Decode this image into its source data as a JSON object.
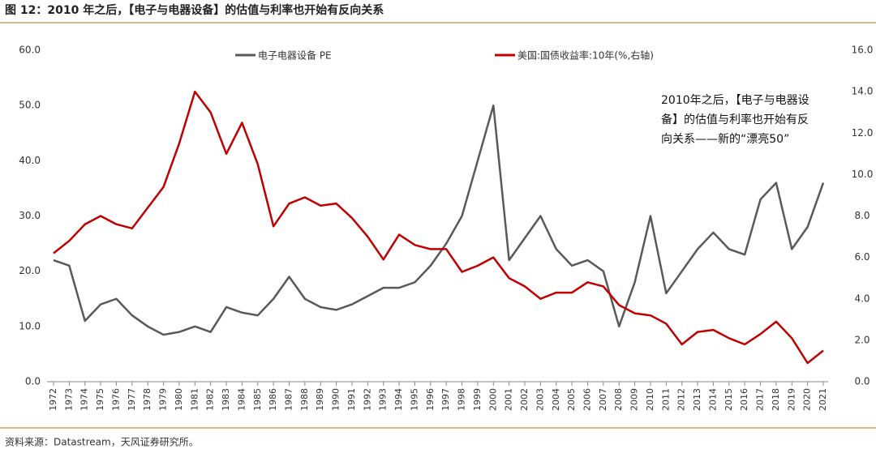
{
  "chart_data": {
    "type": "line",
    "title": "图 12：2010 年之后，【电子与电器设备】的估值与利率也开始有反向关系",
    "annotation": [
      "2010年之后，【电子与电器设",
      "备】的估值与利率也开始有反",
      "向关系——新的“漂亮50”"
    ],
    "source": "资料来源：Datastream，天风证券研究所。",
    "x": [
      1972,
      1973,
      1974,
      1975,
      1976,
      1977,
      1978,
      1979,
      1980,
      1981,
      1982,
      1983,
      1984,
      1985,
      1986,
      1987,
      1988,
      1989,
      1990,
      1991,
      1992,
      1993,
      1994,
      1995,
      1996,
      1997,
      1998,
      1999,
      2000,
      2001,
      2002,
      2003,
      2004,
      2005,
      2006,
      2007,
      2008,
      2009,
      2010,
      2011,
      2012,
      2013,
      2014,
      2015,
      2016,
      2017,
      2018,
      2019,
      2020,
      2021
    ],
    "xlim": [
      1972,
      2021
    ],
    "xticks": [
      1972,
      1973,
      1974,
      1975,
      1976,
      1977,
      1978,
      1979,
      1980,
      1981,
      1982,
      1983,
      1984,
      1985,
      1986,
      1987,
      1988,
      1989,
      1990,
      1991,
      1992,
      1993,
      1994,
      1995,
      1996,
      1997,
      1998,
      1999,
      2000,
      2001,
      2002,
      2003,
      2004,
      2005,
      2006,
      2007,
      2008,
      2009,
      2010,
      2011,
      2012,
      2013,
      2014,
      2015,
      2016,
      2017,
      2018,
      2019,
      2020,
      2021
    ],
    "ylim": [
      0,
      60
    ],
    "yticks": [
      {
        "value": 0,
        "label": "0.0"
      },
      {
        "value": 10,
        "label": "10.0"
      },
      {
        "value": 20,
        "label": "20.0"
      },
      {
        "value": 30,
        "label": "30.0"
      },
      {
        "value": 40,
        "label": "40.0"
      },
      {
        "value": 50,
        "label": "50.0"
      },
      {
        "value": 60,
        "label": "60.0"
      }
    ],
    "y2lim": [
      0,
      16
    ],
    "y2ticks": [
      {
        "value": 0,
        "label": "0.0"
      },
      {
        "value": 2,
        "label": "2.0"
      },
      {
        "value": 4,
        "label": "4.0"
      },
      {
        "value": 6,
        "label": "6.0"
      },
      {
        "value": 8,
        "label": "8.0"
      },
      {
        "value": 10,
        "label": "10.0"
      },
      {
        "value": 12,
        "label": "12.0"
      },
      {
        "value": 14,
        "label": "14.0"
      },
      {
        "value": 16,
        "label": "16.0"
      }
    ],
    "series": [
      {
        "name": "电子电器设备 PE",
        "color": "#595959",
        "values": [
          22,
          21,
          11,
          14,
          15,
          12,
          10,
          8.5,
          9,
          10,
          9,
          13.5,
          12.5,
          12,
          15,
          19,
          15,
          13.5,
          13,
          14,
          15.5,
          17,
          17,
          18,
          21,
          25,
          30,
          40,
          50,
          22,
          26,
          30,
          24,
          21,
          22,
          20,
          10,
          18,
          30,
          16,
          20,
          24,
          27,
          24,
          23,
          33,
          36,
          24,
          28,
          36
        ]
      },
      {
        "name": "美国:国债收益率:10年(%,右轴)",
        "color": "#c00000",
        "axis": "y2",
        "values": [
          6.2,
          6.8,
          7.6,
          8.0,
          7.6,
          7.4,
          8.4,
          9.4,
          11.5,
          14,
          13,
          11,
          12.5,
          10.5,
          7.5,
          8.6,
          8.9,
          8.5,
          8.6,
          7.9,
          7.0,
          5.9,
          7.1,
          6.6,
          6.4,
          6.4,
          5.3,
          5.6,
          6.0,
          5.0,
          4.6,
          4.0,
          4.3,
          4.3,
          4.8,
          4.6,
          3.7,
          3.3,
          3.2,
          2.8,
          1.8,
          2.4,
          2.5,
          2.1,
          1.8,
          2.3,
          2.9,
          2.1,
          0.9,
          1.5
        ]
      }
    ]
  }
}
